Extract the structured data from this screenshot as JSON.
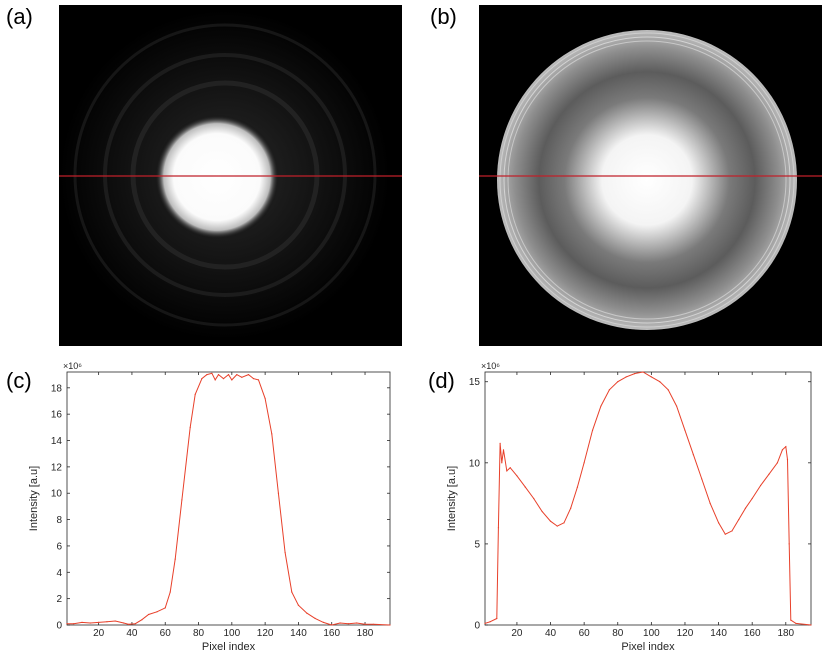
{
  "labels": {
    "a": "(a)",
    "b": "(b)",
    "c": "(c)",
    "d": "(d)"
  },
  "colors": {
    "profile_line": "#c0202a",
    "plot_line": "#e8402a",
    "axis": "#262626",
    "tick_text": "#262626"
  },
  "chart_data": [
    {
      "panel": "(c)",
      "type": "line",
      "xlabel": "Pixel index",
      "ylabel": "Intensity [a.u]",
      "exponent": "×10⁶",
      "xlim": [
        1,
        195
      ],
      "ylim": [
        0,
        19.2
      ],
      "xticks": [
        20,
        40,
        60,
        80,
        100,
        120,
        140,
        160,
        180
      ],
      "yticks": [
        0,
        2,
        4,
        6,
        8,
        10,
        12,
        14,
        16,
        18
      ],
      "grid": false,
      "x": [
        1,
        5,
        10,
        15,
        20,
        25,
        30,
        35,
        38,
        42,
        46,
        50,
        55,
        60,
        63,
        66,
        70,
        75,
        78,
        82,
        85,
        88,
        90,
        92,
        95,
        98,
        100,
        103,
        106,
        110,
        113,
        116,
        120,
        124,
        128,
        132,
        136,
        140,
        145,
        150,
        155,
        160,
        165,
        170,
        175,
        180,
        185,
        195
      ],
      "y": [
        0.1,
        0.1,
        0.2,
        0.15,
        0.2,
        0.25,
        0.3,
        0.15,
        0.05,
        0.1,
        0.4,
        0.8,
        1.0,
        1.3,
        2.5,
        5.0,
        9.5,
        15.0,
        17.5,
        18.7,
        19.0,
        19.1,
        18.6,
        19.0,
        18.7,
        19.0,
        18.6,
        19.0,
        18.8,
        19.0,
        18.7,
        18.6,
        17.2,
        14.5,
        10.0,
        5.5,
        2.5,
        1.5,
        0.9,
        0.5,
        0.2,
        0.0,
        0.15,
        0.1,
        0.15,
        0.05,
        0.05,
        0.0
      ]
    },
    {
      "panel": "(d)",
      "type": "line",
      "xlabel": "Pixel index",
      "ylabel": "Intensity [a.u]",
      "exponent": "×10⁶",
      "xlim": [
        1,
        195
      ],
      "ylim": [
        0,
        15.6
      ],
      "xticks": [
        20,
        40,
        60,
        80,
        100,
        120,
        140,
        160,
        180
      ],
      "yticks": [
        0,
        5,
        10,
        15
      ],
      "grid": false,
      "x": [
        1,
        4,
        8,
        9,
        10,
        11,
        12,
        14,
        16,
        20,
        25,
        30,
        35,
        40,
        44,
        48,
        52,
        56,
        60,
        65,
        70,
        75,
        80,
        85,
        90,
        95,
        100,
        105,
        110,
        115,
        120,
        125,
        130,
        135,
        140,
        144,
        148,
        152,
        156,
        160,
        165,
        170,
        175,
        178,
        180,
        181,
        182,
        183,
        186,
        195
      ],
      "y": [
        0.1,
        0.2,
        0.4,
        6.0,
        11.2,
        10.0,
        10.8,
        9.5,
        9.7,
        9.2,
        8.5,
        7.8,
        7.0,
        6.4,
        6.1,
        6.3,
        7.2,
        8.5,
        10.0,
        12.0,
        13.5,
        14.5,
        15.0,
        15.3,
        15.5,
        15.6,
        15.3,
        15.0,
        14.5,
        13.5,
        12.0,
        10.5,
        9.0,
        7.5,
        6.3,
        5.6,
        5.8,
        6.5,
        7.2,
        7.8,
        8.6,
        9.3,
        10.0,
        10.8,
        11.0,
        10.2,
        5.0,
        0.3,
        0.1,
        0.0
      ]
    }
  ]
}
